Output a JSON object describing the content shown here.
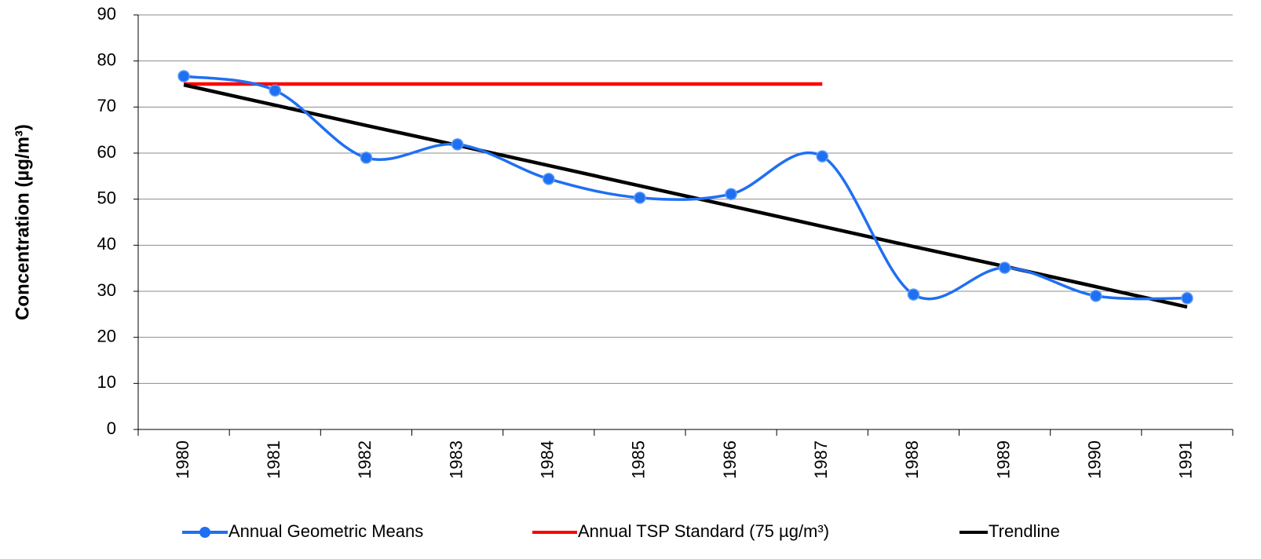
{
  "chart_data": {
    "type": "line",
    "y_axis_label": "Concentration (µg/m³)",
    "categories": [
      "1980",
      "1981",
      "1982",
      "1983",
      "1984",
      "1985",
      "1986",
      "1987",
      "1988",
      "1989",
      "1990",
      "1991"
    ],
    "series": [
      {
        "name": "Annual Geometric Means",
        "color": "#1f6ff2",
        "smooth": true,
        "markers": true,
        "values": [
          76.7,
          73.6,
          59.0,
          61.9,
          54.4,
          50.3,
          51.1,
          59.3,
          29.3,
          35.1,
          29.0,
          28.5
        ]
      },
      {
        "name": "Annual TSP Standard (75 µg/m³)",
        "color": "#ff0000",
        "smooth": false,
        "markers": false,
        "values": [
          75,
          75,
          75,
          75,
          75,
          75,
          75,
          75,
          null,
          null,
          null,
          null
        ]
      },
      {
        "name": "Trendline",
        "color": "#000000",
        "smooth": false,
        "markers": false,
        "values": [
          74.8,
          70.4,
          66.0,
          61.7,
          57.3,
          52.9,
          48.5,
          44.1,
          39.7,
          35.4,
          31.0,
          26.6
        ]
      }
    ],
    "ylim": [
      0,
      90
    ],
    "yticks": [
      0,
      10,
      20,
      30,
      40,
      50,
      60,
      70,
      80,
      90
    ],
    "grid": true,
    "legend": "bottom"
  }
}
